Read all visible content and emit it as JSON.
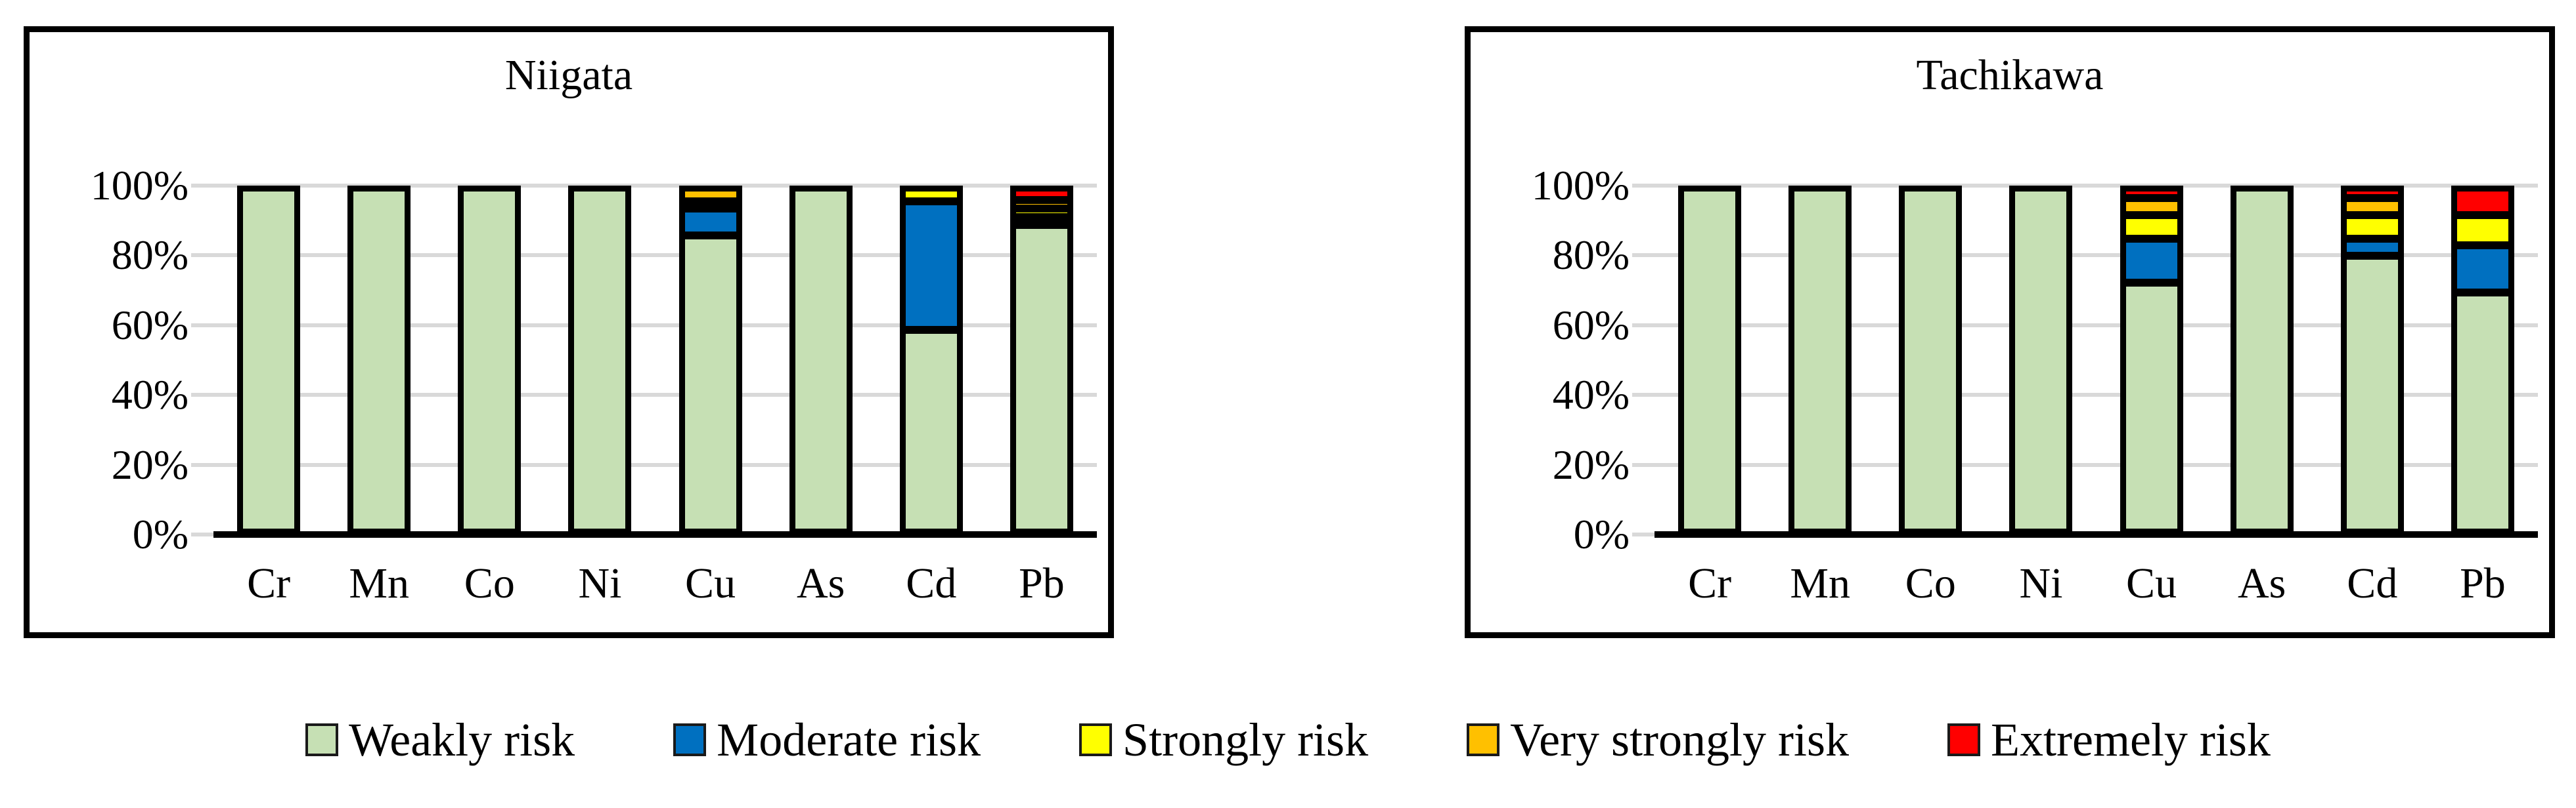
{
  "colors": {
    "grid": "#d9d9d9",
    "axis": "#000000",
    "bar_border": "#000000"
  },
  "legend": {
    "position": "bottom",
    "items": [
      {
        "label": "Weakly risk",
        "color": "#c6e0b4"
      },
      {
        "label": "Moderate risk",
        "color": "#0070c0"
      },
      {
        "label": "Strongly risk",
        "color": "#ffff00"
      },
      {
        "label": "Very strongly risk",
        "color": "#ffc000"
      },
      {
        "label": "Extremely risk",
        "color": "#ff0000"
      }
    ]
  },
  "chart_data": [
    {
      "type": "bar",
      "stacked": true,
      "units": "percent",
      "title": "Niigata",
      "xlabel": "",
      "ylabel": "",
      "ylim": [
        0,
        100
      ],
      "grid": true,
      "categories": [
        "Cr",
        "Mn",
        "Co",
        "Ni",
        "Cu",
        "As",
        "Cd",
        "Pb"
      ],
      "y_ticks": [
        {
          "label": "100%",
          "value": 100
        },
        {
          "label": "80%",
          "value": 80
        },
        {
          "label": "60%",
          "value": 60
        },
        {
          "label": "40%",
          "value": 40
        },
        {
          "label": "20%",
          "value": 20
        },
        {
          "label": "0%",
          "value": 0
        }
      ],
      "series": [
        {
          "name": "Weakly risk",
          "color": "#c6e0b4",
          "values": [
            100,
            100,
            100,
            100,
            87,
            100,
            59,
            90
          ]
        },
        {
          "name": "Moderate risk",
          "color": "#0070c0",
          "values": [
            0,
            0,
            0,
            0,
            8,
            0,
            38,
            2.5
          ]
        },
        {
          "name": "Strongly risk",
          "color": "#ffff00",
          "values": [
            0,
            0,
            0,
            0,
            2,
            0,
            3,
            2.5
          ]
        },
        {
          "name": "Very strongly risk",
          "color": "#ffc000",
          "values": [
            0,
            0,
            0,
            0,
            3,
            0,
            0,
            2.5
          ]
        },
        {
          "name": "Extremely risk",
          "color": "#ff0000",
          "values": [
            0,
            0,
            0,
            0,
            0,
            0,
            0,
            2.5
          ]
        }
      ]
    },
    {
      "type": "bar",
      "stacked": true,
      "units": "percent",
      "title": "Tachikawa",
      "xlabel": "",
      "ylabel": "",
      "ylim": [
        0,
        100
      ],
      "grid": true,
      "categories": [
        "Cr",
        "Mn",
        "Co",
        "Ni",
        "Cu",
        "As",
        "Cd",
        "Pb"
      ],
      "y_ticks": [
        {
          "label": "100%",
          "value": 100
        },
        {
          "label": "80%",
          "value": 80
        },
        {
          "label": "60%",
          "value": 60
        },
        {
          "label": "40%",
          "value": 40
        },
        {
          "label": "20%",
          "value": 20
        },
        {
          "label": "0%",
          "value": 0
        }
      ],
      "series": [
        {
          "name": "Weakly risk",
          "color": "#c6e0b4",
          "values": [
            100,
            100,
            100,
            100,
            73,
            100,
            81,
            70
          ]
        },
        {
          "name": "Moderate risk",
          "color": "#0070c0",
          "values": [
            0,
            0,
            0,
            0,
            13,
            0,
            5,
            14
          ]
        },
        {
          "name": "Strongly risk",
          "color": "#ffff00",
          "values": [
            0,
            0,
            0,
            0,
            7,
            0,
            7,
            9
          ]
        },
        {
          "name": "Very strongly risk",
          "color": "#ffc000",
          "values": [
            0,
            0,
            0,
            0,
            5,
            0,
            5,
            0
          ]
        },
        {
          "name": "Extremely risk",
          "color": "#ff0000",
          "values": [
            0,
            0,
            0,
            0,
            2,
            0,
            2,
            7
          ]
        }
      ]
    }
  ]
}
